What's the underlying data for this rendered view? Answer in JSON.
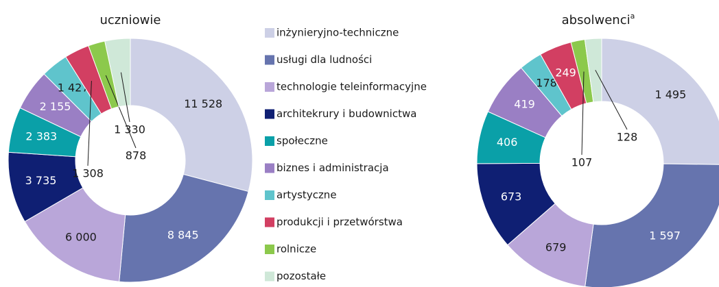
{
  "chart_data": [
    {
      "type": "pie",
      "title": "uczniowie",
      "categories": [
        "inżynieryjno-techniczne",
        "usługi dla ludności",
        "technologie teleinformacyjne",
        "architekrury i budownictwa",
        "społeczne",
        "biznes i administracja",
        "artystyczne",
        "produkcji i przetwórstwa",
        "rolnicze",
        "pozostałe"
      ],
      "colors": [
        "#cdd0e6",
        "#6674ae",
        "#b9a6d9",
        "#0f1f73",
        "#0aa0a8",
        "#9a7fc4",
        "#5fc4cc",
        "#d23f62",
        "#8cc94c",
        "#cfe8d8"
      ],
      "values": [
        11528,
        8845,
        6000,
        3735,
        2383,
        2155,
        1427,
        1308,
        878,
        1330
      ],
      "value_labels": [
        "11 528",
        "8 845",
        "6 000",
        "3 735",
        "2 383",
        "2 155",
        "1 427",
        "1 308",
        "878",
        "1 330"
      ]
    },
    {
      "type": "pie",
      "title": "absolwenci",
      "title_superscript": "a",
      "values": [
        1495,
        1597,
        679,
        673,
        406,
        419,
        178,
        249,
        107,
        128
      ],
      "value_labels": [
        "1 495",
        "1 597",
        "679",
        "673",
        "406",
        "419",
        "178",
        "249",
        "107",
        "128"
      ]
    }
  ]
}
